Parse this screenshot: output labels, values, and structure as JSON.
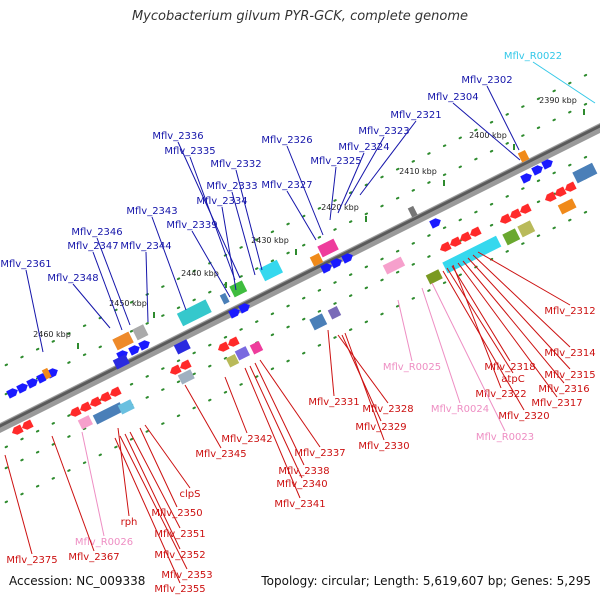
{
  "title": "Mycobacterium gilvum PYR-GCK, complete genome",
  "footer": {
    "accession": "Accession: NC_009338",
    "summary": "Topology: circular; Length: 5,619,607 bp; Genes: 5,295"
  },
  "colors": {
    "forward_gene": "#1a1aff",
    "reverse_gene": "#ff2a2a",
    "forward_label": "#1515aa",
    "reverse_label": "#cc1010",
    "rna_label": "#ee8ec3",
    "trna_label": "#33c8e8"
  },
  "scale": {
    "kbp_labels": [
      "2390 kbp",
      "2400 kbp",
      "2410 kbp",
      "2420 kbp",
      "2430 kbp",
      "2440 kbp",
      "2450 kbp",
      "2460 kbp"
    ]
  },
  "labels": {
    "forward": [
      "Mflv_R0022",
      "Mflv_2302",
      "Mflv_2304",
      "Mflv_2321",
      "Mflv_2323",
      "Mflv_2324",
      "Mflv_2325",
      "Mflv_2326",
      "Mflv_2327",
      "Mflv_2336",
      "Mflv_2335",
      "Mflv_2332",
      "Mflv_2333",
      "Mflv_2334",
      "Mflv_2339",
      "Mflv_2343",
      "Mflv_2346",
      "Mflv_2347",
      "Mflv_2344",
      "Mflv_2348",
      "Mflv_2361"
    ],
    "reverse": [
      "Mflv_2312",
      "Mflv_2314",
      "Mflv_2315",
      "Mflv_2316",
      "Mflv_2317",
      "Mflv_2318",
      "atpC",
      "Mflv_2322",
      "Mflv_2320",
      "Mflv_R0025",
      "Mflv_R0024",
      "Mflv_R0023",
      "Mflv_2331",
      "Mflv_2328",
      "Mflv_2329",
      "Mflv_2330",
      "Mflv_2337",
      "Mflv_2338",
      "Mflv_2340",
      "Mflv_2341",
      "Mflv_2342",
      "Mflv_2345",
      "clpS",
      "Mflv_2350",
      "Mflv_2351",
      "Mflv_2352",
      "Mflv_2353",
      "Mflv_2355",
      "rph",
      "Mflv_R0026",
      "Mflv_2367",
      "Mflv_2375"
    ]
  }
}
